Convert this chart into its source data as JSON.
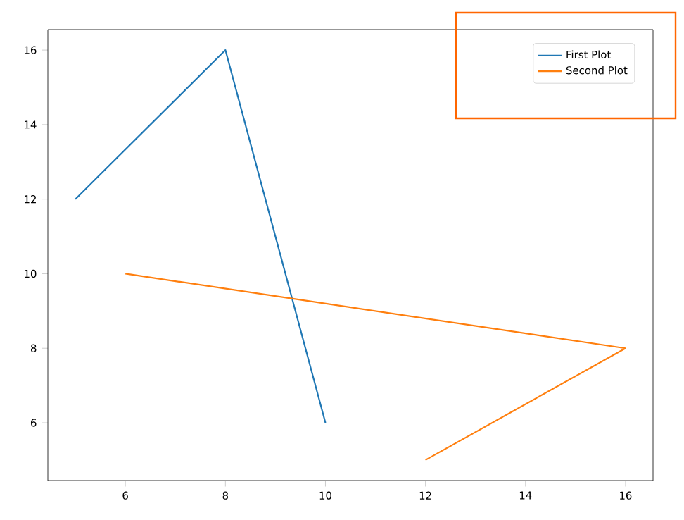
{
  "chart_data": {
    "type": "line",
    "xlim": [
      4.45,
      16.55
    ],
    "ylim": [
      4.45,
      16.55
    ],
    "xticks": [
      6,
      8,
      10,
      12,
      14,
      16
    ],
    "yticks": [
      6,
      8,
      10,
      12,
      14,
      16
    ],
    "legend": "top right",
    "grid": false,
    "series": [
      {
        "name": "First Plot",
        "color": "#1f77b4",
        "x": [
          5,
          8,
          10
        ],
        "values": [
          12,
          16,
          6
        ]
      },
      {
        "name": "Second Plot",
        "color": "#ff7f0e",
        "x": [
          6,
          16,
          12
        ],
        "values": [
          10,
          8,
          5
        ]
      }
    ]
  }
}
